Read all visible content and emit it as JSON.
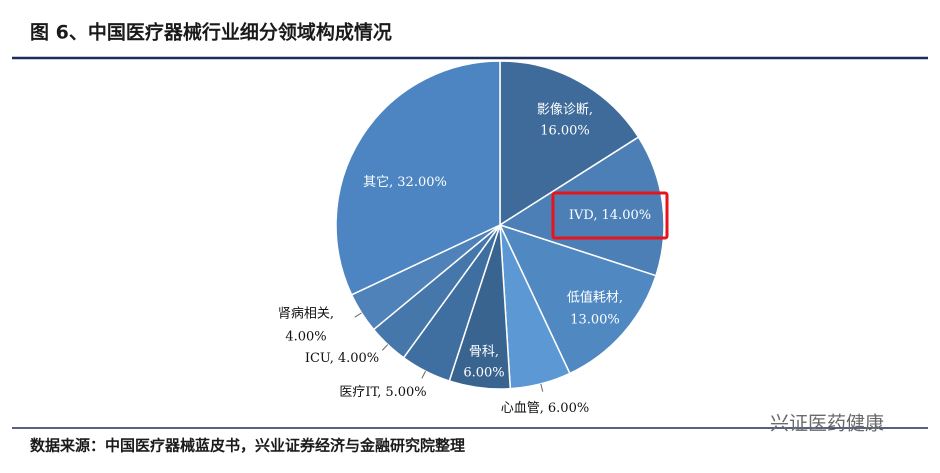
{
  "title": "图 6、中国医疗器械行业细分领域构成情况",
  "chart_data": {
    "type": "pie",
    "categories": [
      "影像诊断,",
      "IVD,",
      "低值耗材,",
      "心血管,",
      "骨科,",
      "医疗IT,",
      "ICU,",
      "肾病相关,",
      "其它,"
    ],
    "values": [
      16,
      14,
      13,
      6,
      6,
      5,
      4,
      4,
      32
    ],
    "value_labels": [
      "16.00%",
      "14.00%",
      "13.00%",
      "6.00%",
      "6.00%",
      "5.00%",
      "4.00%",
      "4.00%",
      "32.00%"
    ],
    "colors": [
      "#3e6b99",
      "#4b7fb6",
      "#5088c2",
      "#5c98d4",
      "#3a6490",
      "#3f6ea1",
      "#4677ab",
      "#4f82b8",
      "#4c85c2"
    ]
  },
  "source": "数据来源：中国医疗器械蓝皮书，兴业证券经济与金融研究院整理",
  "watermark": "兴证医药健康"
}
